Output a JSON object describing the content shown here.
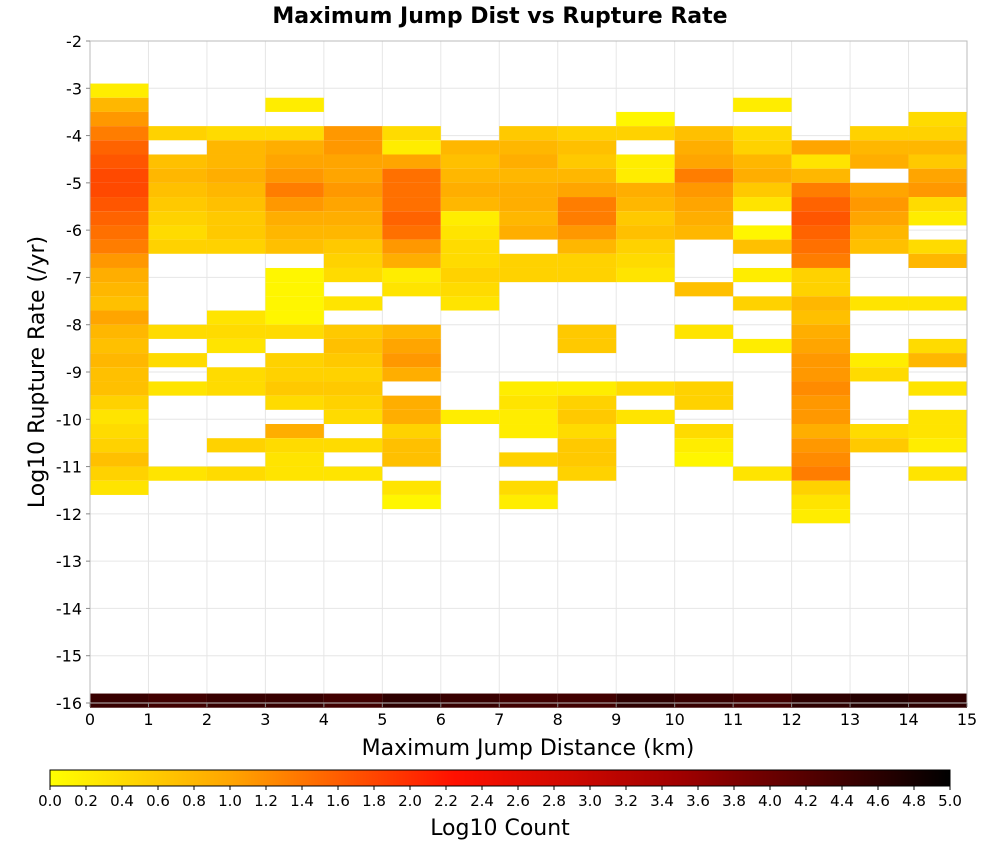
{
  "chart_data": {
    "type": "heatmap",
    "title": "Maximum Jump Dist vs Rupture Rate",
    "xlabel": "Maximum Jump Distance (km)",
    "ylabel": "Log10 Rupture Rate (/yr)",
    "colorbar_label": "Log10 Count",
    "xlim": [
      0,
      15
    ],
    "ylim": [
      -16,
      -2
    ],
    "x_ticks": [
      0,
      1,
      2,
      3,
      4,
      5,
      6,
      7,
      8,
      9,
      10,
      11,
      12,
      13,
      14,
      15
    ],
    "y_ticks": [
      -2,
      -3,
      -4,
      -5,
      -6,
      -7,
      -8,
      -9,
      -10,
      -11,
      -12,
      -13,
      -14,
      -15,
      -16
    ],
    "colorbar_range": [
      0.0,
      5.0
    ],
    "colorbar_ticks": [
      "0.0",
      "0.2",
      "0.4",
      "0.6",
      "0.8",
      "1.0",
      "1.2",
      "1.4",
      "1.6",
      "1.8",
      "2.0",
      "2.2",
      "2.4",
      "2.6",
      "2.8",
      "3.0",
      "3.2",
      "3.4",
      "3.6",
      "3.8",
      "4.0",
      "4.2",
      "4.4",
      "4.6",
      "4.8",
      "5.0"
    ],
    "colormap": [
      "#ffff00",
      "#ffa500",
      "#ff0000",
      "#000000"
    ],
    "grid": true,
    "x_bin_width": 1,
    "y_bin_height": 0.3,
    "y_bin_start": -16.1,
    "cells": [
      {
        "x": 0,
        "rows": [
          [
            43,
            0.2
          ],
          [
            42,
            0.8
          ],
          [
            41,
            1.1
          ],
          [
            40,
            1.3
          ],
          [
            39,
            1.5
          ],
          [
            38,
            1.6
          ],
          [
            37,
            1.7
          ],
          [
            36,
            1.7
          ],
          [
            35,
            1.6
          ],
          [
            34,
            1.5
          ],
          [
            33,
            1.4
          ],
          [
            32,
            1.3
          ],
          [
            31,
            1.1
          ],
          [
            30,
            0.9
          ],
          [
            29,
            0.8
          ],
          [
            28,
            0.7
          ],
          [
            27,
            1.0
          ],
          [
            26,
            0.8
          ],
          [
            25,
            0.7
          ],
          [
            24,
            0.8
          ],
          [
            23,
            0.7
          ],
          [
            22,
            0.7
          ],
          [
            21,
            0.5
          ],
          [
            20,
            0.3
          ],
          [
            19,
            0.4
          ],
          [
            18,
            0.5
          ],
          [
            17,
            0.7
          ],
          [
            16,
            0.5
          ],
          [
            15,
            0.3
          ],
          [
            0,
            4.4
          ]
        ]
      },
      {
        "x": 1,
        "rows": [
          [
            40,
            0.5
          ],
          [
            38,
            0.7
          ],
          [
            37,
            0.8
          ],
          [
            36,
            0.7
          ],
          [
            35,
            0.6
          ],
          [
            34,
            0.5
          ],
          [
            33,
            0.4
          ],
          [
            32,
            0.5
          ],
          [
            26,
            0.4
          ],
          [
            24,
            0.4
          ],
          [
            22,
            0.3
          ],
          [
            16,
            0.3
          ],
          [
            0,
            4.3
          ]
        ]
      },
      {
        "x": 2,
        "rows": [
          [
            40,
            0.4
          ],
          [
            39,
            0.8
          ],
          [
            38,
            0.8
          ],
          [
            37,
            0.9
          ],
          [
            36,
            0.8
          ],
          [
            35,
            0.7
          ],
          [
            34,
            0.6
          ],
          [
            33,
            0.6
          ],
          [
            32,
            0.5
          ],
          [
            27,
            0.3
          ],
          [
            26,
            0.4
          ],
          [
            25,
            0.3
          ],
          [
            23,
            0.4
          ],
          [
            22,
            0.4
          ],
          [
            18,
            0.5
          ],
          [
            16,
            0.4
          ],
          [
            0,
            4.4
          ]
        ]
      },
      {
        "x": 3,
        "rows": [
          [
            42,
            0.2
          ],
          [
            40,
            0.4
          ],
          [
            39,
            0.9
          ],
          [
            38,
            1.0
          ],
          [
            37,
            1.1
          ],
          [
            36,
            1.3
          ],
          [
            35,
            1.1
          ],
          [
            34,
            0.9
          ],
          [
            33,
            0.8
          ],
          [
            32,
            0.7
          ],
          [
            30,
            0.1
          ],
          [
            29,
            0.1
          ],
          [
            28,
            0.1
          ],
          [
            27,
            0.1
          ],
          [
            26,
            0.4
          ],
          [
            24,
            0.5
          ],
          [
            23,
            0.5
          ],
          [
            22,
            0.6
          ],
          [
            21,
            0.4
          ],
          [
            19,
            0.9
          ],
          [
            18,
            0.4
          ],
          [
            17,
            0.3
          ],
          [
            16,
            0.3
          ],
          [
            0,
            4.4
          ]
        ]
      },
      {
        "x": 4,
        "rows": [
          [
            40,
            1.1
          ],
          [
            39,
            1.1
          ],
          [
            38,
            1.0
          ],
          [
            37,
            1.0
          ],
          [
            36,
            1.1
          ],
          [
            35,
            1.0
          ],
          [
            34,
            0.9
          ],
          [
            33,
            0.8
          ],
          [
            32,
            0.6
          ],
          [
            31,
            0.5
          ],
          [
            30,
            0.4
          ],
          [
            28,
            0.3
          ],
          [
            26,
            0.6
          ],
          [
            25,
            0.7
          ],
          [
            24,
            0.6
          ],
          [
            23,
            0.5
          ],
          [
            22,
            0.6
          ],
          [
            21,
            0.5
          ],
          [
            20,
            0.4
          ],
          [
            18,
            0.4
          ],
          [
            16,
            0.3
          ],
          [
            0,
            4.3
          ]
        ]
      },
      {
        "x": 5,
        "rows": [
          [
            40,
            0.4
          ],
          [
            39,
            0.2
          ],
          [
            38,
            1.0
          ],
          [
            37,
            1.4
          ],
          [
            36,
            1.4
          ],
          [
            35,
            1.4
          ],
          [
            34,
            1.5
          ],
          [
            33,
            1.4
          ],
          [
            32,
            1.1
          ],
          [
            31,
            0.9
          ],
          [
            30,
            0.2
          ],
          [
            29,
            0.3
          ],
          [
            26,
            0.8
          ],
          [
            25,
            1.0
          ],
          [
            24,
            1.1
          ],
          [
            23,
            0.9
          ],
          [
            21,
            0.9
          ],
          [
            20,
            0.9
          ],
          [
            19,
            0.5
          ],
          [
            18,
            0.7
          ],
          [
            17,
            0.7
          ],
          [
            15,
            0.3
          ],
          [
            14,
            0.1
          ],
          [
            0,
            4.5
          ]
        ]
      },
      {
        "x": 6,
        "rows": [
          [
            39,
            0.8
          ],
          [
            38,
            0.7
          ],
          [
            37,
            0.8
          ],
          [
            36,
            0.9
          ],
          [
            35,
            0.8
          ],
          [
            34,
            0.2
          ],
          [
            33,
            0.3
          ],
          [
            32,
            0.4
          ],
          [
            31,
            0.4
          ],
          [
            30,
            0.5
          ],
          [
            29,
            0.4
          ],
          [
            28,
            0.3
          ],
          [
            20,
            0.2
          ],
          [
            0,
            4.4
          ]
        ]
      },
      {
        "x": 7,
        "rows": [
          [
            40,
            0.6
          ],
          [
            39,
            0.8
          ],
          [
            38,
            0.9
          ],
          [
            37,
            0.8
          ],
          [
            36,
            0.9
          ],
          [
            35,
            0.9
          ],
          [
            34,
            0.8
          ],
          [
            33,
            0.9
          ],
          [
            31,
            0.5
          ],
          [
            30,
            0.5
          ],
          [
            22,
            0.2
          ],
          [
            21,
            0.3
          ],
          [
            20,
            0.2
          ],
          [
            19,
            0.2
          ],
          [
            17,
            0.5
          ],
          [
            15,
            0.4
          ],
          [
            14,
            0.2
          ],
          [
            0,
            4.3
          ]
        ]
      },
      {
        "x": 8,
        "rows": [
          [
            40,
            0.5
          ],
          [
            39,
            0.7
          ],
          [
            38,
            0.6
          ],
          [
            37,
            0.8
          ],
          [
            36,
            1.0
          ],
          [
            35,
            1.3
          ],
          [
            34,
            1.3
          ],
          [
            33,
            1.1
          ],
          [
            32,
            0.8
          ],
          [
            31,
            0.5
          ],
          [
            30,
            0.5
          ],
          [
            26,
            0.6
          ],
          [
            25,
            0.6
          ],
          [
            22,
            0.2
          ],
          [
            21,
            0.5
          ],
          [
            20,
            0.6
          ],
          [
            19,
            0.4
          ],
          [
            18,
            0.6
          ],
          [
            17,
            0.6
          ],
          [
            16,
            0.5
          ],
          [
            0,
            4.3
          ]
        ]
      },
      {
        "x": 9,
        "rows": [
          [
            41,
            0.1
          ],
          [
            40,
            0.5
          ],
          [
            38,
            0.2
          ],
          [
            37,
            0.2
          ],
          [
            36,
            0.9
          ],
          [
            35,
            0.8
          ],
          [
            34,
            0.6
          ],
          [
            33,
            0.7
          ],
          [
            32,
            0.5
          ],
          [
            31,
            0.4
          ],
          [
            30,
            0.3
          ],
          [
            22,
            0.4
          ],
          [
            20,
            0.3
          ],
          [
            0,
            4.5
          ]
        ]
      },
      {
        "x": 10,
        "rows": [
          [
            40,
            0.7
          ],
          [
            39,
            0.9
          ],
          [
            38,
            1.0
          ],
          [
            37,
            1.3
          ],
          [
            36,
            1.1
          ],
          [
            35,
            1.0
          ],
          [
            34,
            0.9
          ],
          [
            33,
            0.8
          ],
          [
            29,
            0.7
          ],
          [
            26,
            0.3
          ],
          [
            22,
            0.5
          ],
          [
            21,
            0.5
          ],
          [
            19,
            0.4
          ],
          [
            18,
            0.2
          ],
          [
            17,
            0.1
          ],
          [
            0,
            4.4
          ]
        ]
      },
      {
        "x": 11,
        "rows": [
          [
            42,
            0.2
          ],
          [
            40,
            0.4
          ],
          [
            39,
            0.5
          ],
          [
            38,
            0.8
          ],
          [
            37,
            0.9
          ],
          [
            36,
            0.6
          ],
          [
            35,
            0.3
          ],
          [
            33,
            0.1
          ],
          [
            32,
            0.7
          ],
          [
            30,
            0.2
          ],
          [
            28,
            0.5
          ],
          [
            25,
            0.2
          ],
          [
            16,
            0.3
          ],
          [
            0,
            4.3
          ]
        ]
      },
      {
        "x": 12,
        "rows": [
          [
            39,
            1.0
          ],
          [
            38,
            0.3
          ],
          [
            37,
            0.8
          ],
          [
            36,
            1.3
          ],
          [
            35,
            1.5
          ],
          [
            34,
            1.6
          ],
          [
            33,
            1.5
          ],
          [
            32,
            1.4
          ],
          [
            31,
            1.3
          ],
          [
            30,
            0.5
          ],
          [
            29,
            0.5
          ],
          [
            28,
            0.8
          ],
          [
            27,
            0.7
          ],
          [
            26,
            0.9
          ],
          [
            25,
            1.0
          ],
          [
            24,
            1.1
          ],
          [
            23,
            1.1
          ],
          [
            22,
            1.2
          ],
          [
            21,
            1.1
          ],
          [
            20,
            1.1
          ],
          [
            19,
            0.9
          ],
          [
            18,
            1.1
          ],
          [
            17,
            1.2
          ],
          [
            16,
            1.3
          ],
          [
            15,
            0.5
          ],
          [
            14,
            0.3
          ],
          [
            13,
            0.2
          ],
          [
            0,
            4.5
          ]
        ]
      },
      {
        "x": 13,
        "rows": [
          [
            40,
            0.5
          ],
          [
            39,
            0.8
          ],
          [
            38,
            0.9
          ],
          [
            36,
            1.0
          ],
          [
            35,
            1.1
          ],
          [
            34,
            1.0
          ],
          [
            33,
            0.8
          ],
          [
            32,
            0.7
          ],
          [
            28,
            0.3
          ],
          [
            24,
            0.2
          ],
          [
            23,
            0.4
          ],
          [
            19,
            0.4
          ],
          [
            18,
            0.6
          ],
          [
            0,
            4.6
          ]
        ]
      },
      {
        "x": 14,
        "rows": [
          [
            41,
            0.4
          ],
          [
            40,
            0.5
          ],
          [
            39,
            0.8
          ],
          [
            38,
            0.6
          ],
          [
            37,
            1.0
          ],
          [
            36,
            1.1
          ],
          [
            35,
            0.4
          ],
          [
            34,
            0.2
          ],
          [
            32,
            0.4
          ],
          [
            31,
            0.8
          ],
          [
            28,
            0.3
          ],
          [
            25,
            0.4
          ],
          [
            24,
            0.8
          ],
          [
            22,
            0.3
          ],
          [
            20,
            0.3
          ],
          [
            19,
            0.3
          ],
          [
            18,
            0.2
          ],
          [
            16,
            0.3
          ],
          [
            0,
            4.5
          ]
        ]
      }
    ]
  }
}
